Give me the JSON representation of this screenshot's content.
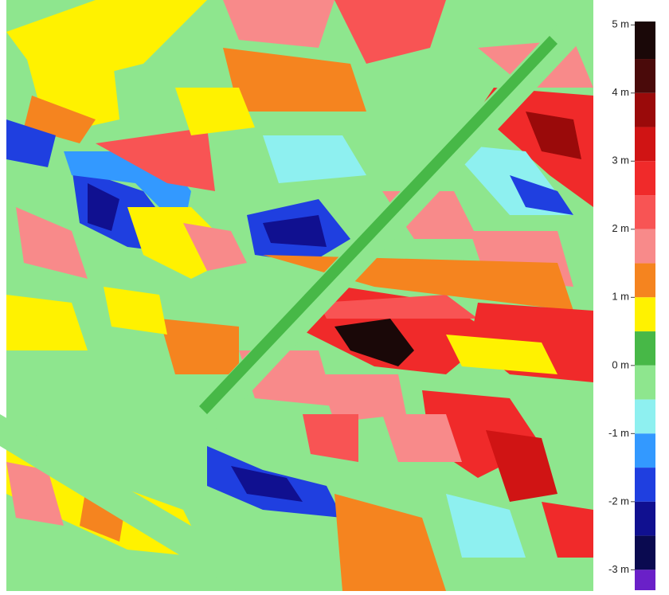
{
  "colorbar": {
    "clim": [
      -3.3,
      5.05
    ],
    "ticks": [
      {
        "value": 5,
        "label": "5 m"
      },
      {
        "value": 4,
        "label": "4 m"
      },
      {
        "value": 3,
        "label": "3 m"
      },
      {
        "value": 2,
        "label": "2 m"
      },
      {
        "value": 1,
        "label": "1 m"
      },
      {
        "value": 0,
        "label": "0 m"
      },
      {
        "value": -1,
        "label": "-1 m"
      },
      {
        "value": -2,
        "label": "-2 m"
      },
      {
        "value": -3,
        "label": "-3 m"
      }
    ],
    "bands": [
      {
        "from": 4.5,
        "to": 5.05,
        "color": "#1a0808"
      },
      {
        "from": 4.0,
        "to": 4.5,
        "color": "#4a0a0a"
      },
      {
        "from": 3.5,
        "to": 4.0,
        "color": "#9a0a0a"
      },
      {
        "from": 3.0,
        "to": 3.5,
        "color": "#d01414"
      },
      {
        "from": 2.5,
        "to": 3.0,
        "color": "#f02a2a"
      },
      {
        "from": 2.0,
        "to": 2.5,
        "color": "#f85454"
      },
      {
        "from": 1.5,
        "to": 2.0,
        "color": "#f88a8a"
      },
      {
        "from": 1.0,
        "to": 1.5,
        "color": "#f5841f"
      },
      {
        "from": 0.5,
        "to": 1.0,
        "color": "#fff200"
      },
      {
        "from": 0.0,
        "to": 0.5,
        "color": "#47b847"
      },
      {
        "from": -0.5,
        "to": 0.0,
        "color": "#8ee68e"
      },
      {
        "from": -1.0,
        "to": -0.5,
        "color": "#8ef0f0"
      },
      {
        "from": -1.5,
        "to": -1.0,
        "color": "#3399ff"
      },
      {
        "from": -2.0,
        "to": -1.5,
        "color": "#1f3fe0"
      },
      {
        "from": -2.5,
        "to": -2.0,
        "color": "#101090"
      },
      {
        "from": -3.0,
        "to": -2.5,
        "color": "#0a0a50"
      },
      {
        "from": -3.3,
        "to": -3.0,
        "color": "#6a20c8"
      }
    ]
  }
}
